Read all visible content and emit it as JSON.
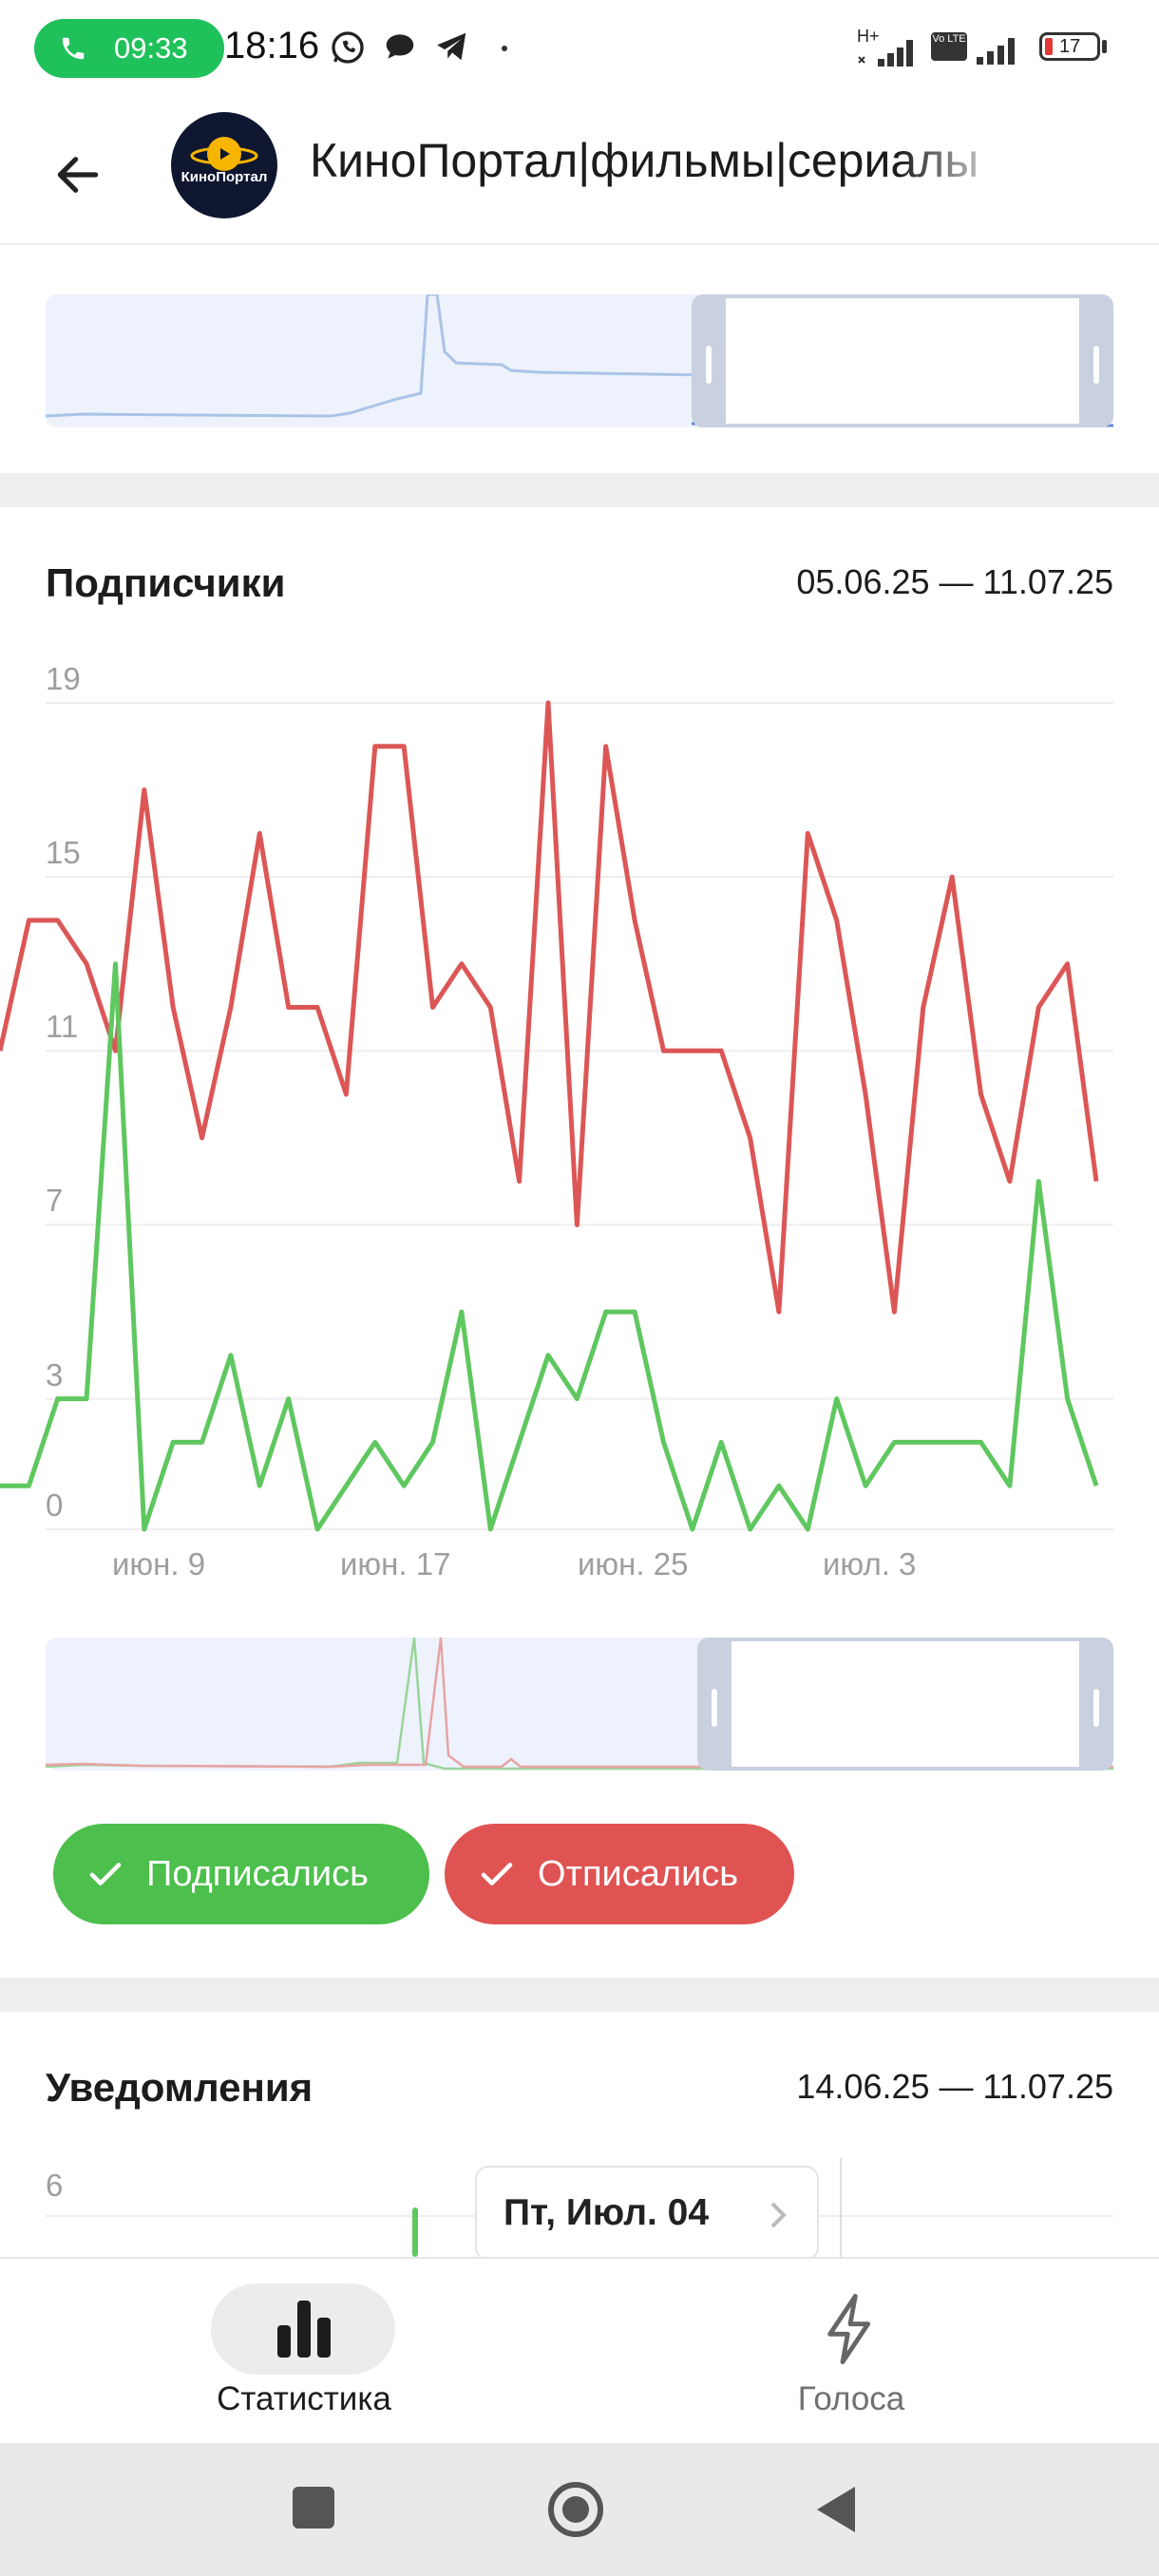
{
  "status_bar": {
    "call_timer": "09:33",
    "time": "18:16",
    "network_type": "H+",
    "volte": "Vo LTE",
    "battery_level": "17"
  },
  "app_bar": {
    "channel_title": "КиноПортал|фильмы|сериалы",
    "avatar_text": "КиноПортал"
  },
  "subscribers_card": {
    "title": "Подписчики",
    "date_range": "05.06.25 — 11.07.25",
    "y_ticks": [
      "19",
      "15",
      "11",
      "7",
      "3",
      "0"
    ],
    "x_ticks": [
      "июн. 9",
      "июн. 17",
      "июн. 25",
      "июл. 3"
    ],
    "legend": [
      {
        "label": "Подписались",
        "color": "#4cbf4c"
      },
      {
        "label": "Отписались",
        "color": "#e05353"
      }
    ]
  },
  "notifications_card": {
    "title": "Уведомления",
    "date_range": "14.06.25 — 11.07.25",
    "y_tick": "6",
    "tooltip_date": "Пт, Июл. 04"
  },
  "bottom_nav": {
    "items": [
      {
        "label": "Статистика",
        "icon": "bar-chart-icon",
        "active": true
      },
      {
        "label": "Голоса",
        "icon": "lightning-icon",
        "active": false
      }
    ]
  },
  "chart_data": {
    "type": "line",
    "title": "Подписчики",
    "ylim": [
      0,
      19
    ],
    "x_start": "2025-06-05",
    "x_end": "2025-07-11",
    "x_tick_labels": [
      "июн. 9",
      "июн. 17",
      "июн. 25",
      "июл. 3"
    ],
    "series": [
      {
        "name": "Подписались",
        "color": "#5fc75f",
        "values": [
          1,
          1,
          3,
          3,
          13,
          0,
          2,
          2,
          4,
          1,
          3,
          0,
          1,
          2,
          1,
          2,
          5,
          0,
          2,
          4,
          3,
          5,
          5,
          2,
          0,
          2,
          0,
          1,
          0,
          3,
          1,
          2,
          2,
          2,
          2,
          1,
          8,
          3,
          1
        ]
      },
      {
        "name": "Отписались",
        "color": "#dc5656",
        "values": [
          11,
          14,
          14,
          13,
          11,
          17,
          12,
          9,
          12,
          16,
          12,
          12,
          10,
          18,
          18,
          12,
          13,
          12,
          8,
          19,
          7,
          18,
          14,
          11,
          11,
          11,
          9,
          5,
          16,
          14,
          10,
          5,
          12,
          15,
          10,
          8,
          12,
          13,
          8
        ]
      }
    ]
  }
}
